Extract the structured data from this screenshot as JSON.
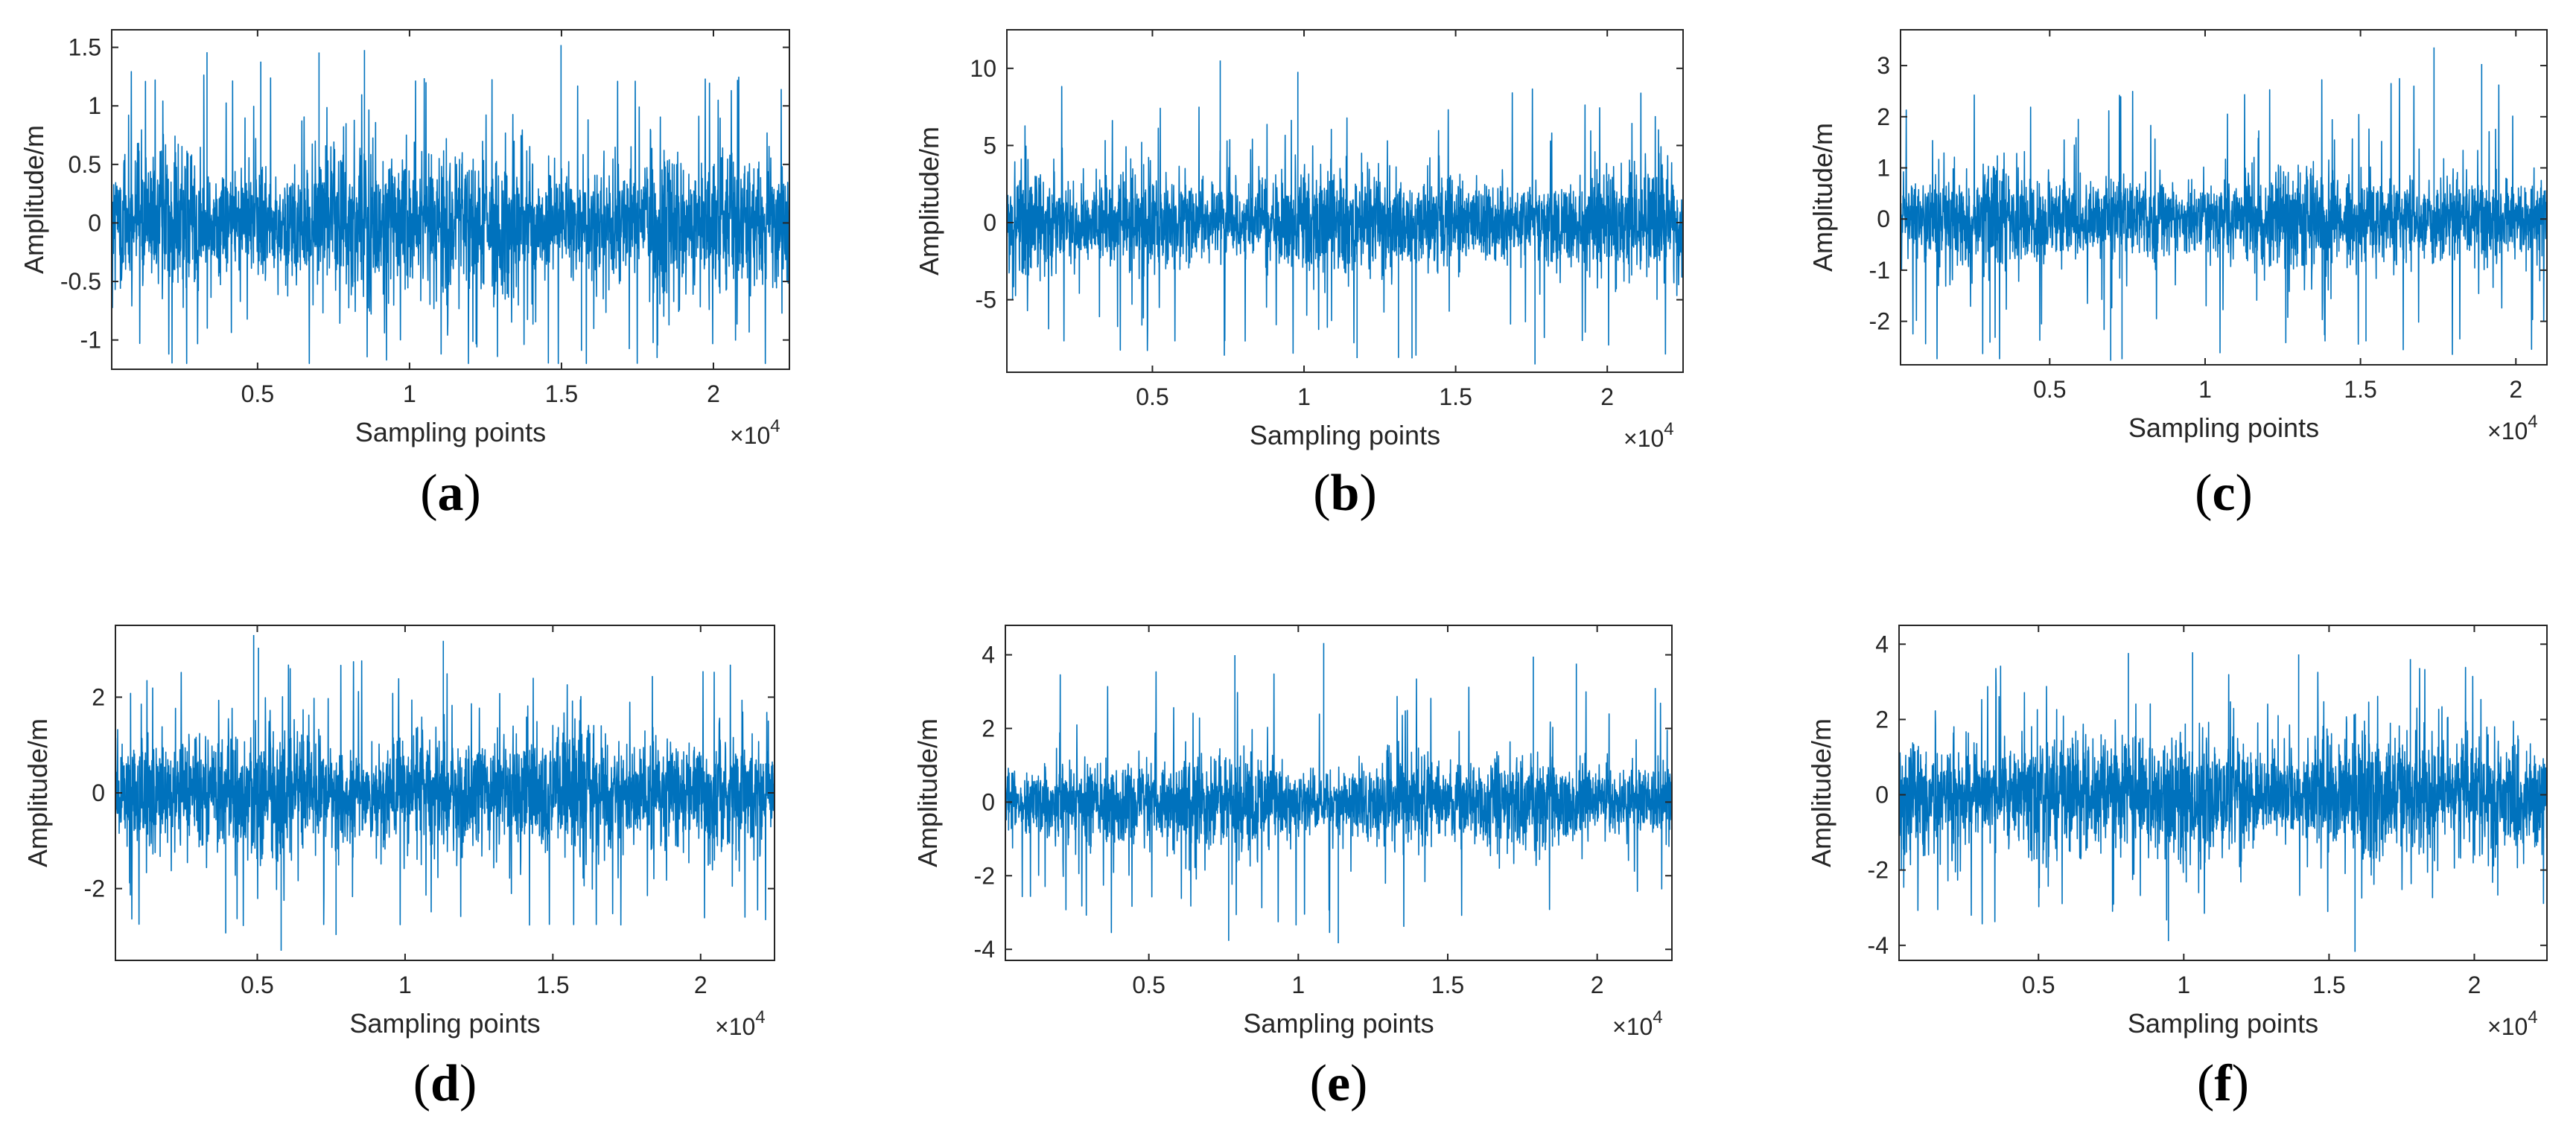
{
  "colors": {
    "signal": "#0072BD",
    "axis": "#262626",
    "background": "#ffffff"
  },
  "chart_data": [
    {
      "type": "line",
      "panel": "(a)",
      "panel_letter": "a",
      "title": "",
      "xlabel": "Sampling points",
      "ylabel": "Amplitude/m",
      "x_multiplier": "×10",
      "x_multiplier_exp": "4",
      "xlim": [
        0.02,
        2.25
      ],
      "ylim": [
        -1.25,
        1.65
      ],
      "xticks": [
        0.5,
        1,
        1.5,
        2
      ],
      "xtick_labels": [
        "0.5",
        "1",
        "1.5",
        "2"
      ],
      "yticks": [
        -1,
        -0.5,
        0,
        0.5,
        1,
        1.5
      ],
      "ytick_labels": [
        "-1",
        "-0.5",
        "0",
        "0.5",
        "1",
        "1.5"
      ],
      "signal": {
        "n_points": 22528,
        "core_amplitude": 0.5,
        "peak_max": 1.58,
        "peak_min": -1.2,
        "x_end": 2.25
      }
    },
    {
      "type": "line",
      "panel": "(b)",
      "panel_letter": "b",
      "title": "",
      "xlabel": "Sampling points",
      "ylabel": "Amplitude/m",
      "x_multiplier": "×10",
      "x_multiplier_exp": "4",
      "xlim": [
        0.02,
        2.25
      ],
      "ylim": [
        -9.7,
        12.5
      ],
      "xticks": [
        0.5,
        1,
        1.5,
        2
      ],
      "xtick_labels": [
        "0.5",
        "1",
        "1.5",
        "2"
      ],
      "yticks": [
        -5,
        0,
        5,
        10
      ],
      "ytick_labels": [
        "-5",
        "0",
        "5",
        "10"
      ],
      "signal": {
        "n_points": 22528,
        "core_amplitude": 2.6,
        "peak_max": 11,
        "peak_min": -9.3,
        "x_end": 2.25
      }
    },
    {
      "type": "line",
      "panel": "(c)",
      "panel_letter": "c",
      "title": "",
      "xlabel": "Sampling points",
      "ylabel": "Amplitude/m",
      "x_multiplier": "×10",
      "x_multiplier_exp": "4",
      "xlim": [
        0.02,
        2.1
      ],
      "ylim": [
        -2.85,
        3.7
      ],
      "xticks": [
        0.5,
        1,
        1.5,
        2
      ],
      "xtick_labels": [
        "0.5",
        "1",
        "1.5",
        "2"
      ],
      "yticks": [
        -2,
        -1,
        0,
        1,
        2,
        3
      ],
      "ytick_labels": [
        "-2",
        "-1",
        "0",
        "1",
        "2",
        "3"
      ],
      "signal": {
        "n_points": 22528,
        "core_amplitude": 0.75,
        "peak_max": 3.5,
        "peak_min": -2.8,
        "x_end": 2.1
      }
    },
    {
      "type": "line",
      "panel": "(d)",
      "panel_letter": "d",
      "title": "",
      "xlabel": "Sampling points",
      "ylabel": "Amplitude/m",
      "x_multiplier": "×10",
      "x_multiplier_exp": "4",
      "xlim": [
        0.02,
        2.25
      ],
      "ylim": [
        -3.5,
        3.5
      ],
      "xticks": [
        0.5,
        1,
        1.5,
        2
      ],
      "xtick_labels": [
        "0.5",
        "1",
        "1.5",
        "2"
      ],
      "yticks": [
        -2,
        0,
        2
      ],
      "ytick_labels": [
        "-2",
        "0",
        "2"
      ],
      "signal": {
        "n_points": 22528,
        "core_amplitude": 1.1,
        "peak_max": 3.4,
        "peak_min": -3.4,
        "x_end": 2.25
      }
    },
    {
      "type": "line",
      "panel": "(e)",
      "panel_letter": "e",
      "title": "",
      "xlabel": "Sampling points",
      "ylabel": "Amplitude/m",
      "x_multiplier": "×10",
      "x_multiplier_exp": "4",
      "xlim": [
        0.02,
        2.25
      ],
      "ylim": [
        -4.3,
        4.8
      ],
      "xticks": [
        0.5,
        1,
        1.5,
        2
      ],
      "xtick_labels": [
        "0.5",
        "1",
        "1.5",
        "2"
      ],
      "yticks": [
        -4,
        -2,
        0,
        2,
        4
      ],
      "ytick_labels": [
        "-4",
        "-2",
        "0",
        "2",
        "4"
      ],
      "signal": {
        "n_points": 22528,
        "core_amplitude": 1.0,
        "peak_max": 4.4,
        "peak_min": -4.1,
        "x_end": 2.25
      }
    },
    {
      "type": "line",
      "panel": "(f)",
      "panel_letter": "f",
      "title": "",
      "xlabel": "Sampling points",
      "ylabel": "Amplitude/m",
      "x_multiplier": "×10",
      "x_multiplier_exp": "4",
      "xlim": [
        0.02,
        2.25
      ],
      "ylim": [
        -4.4,
        4.5
      ],
      "xticks": [
        0.5,
        1,
        1.5,
        2
      ],
      "xtick_labels": [
        "0.5",
        "1",
        "1.5",
        "2"
      ],
      "yticks": [
        -4,
        -2,
        0,
        2,
        4
      ],
      "ytick_labels": [
        "-4",
        "-2",
        "0",
        "2",
        "4"
      ],
      "signal": {
        "n_points": 22528,
        "core_amplitude": 1.3,
        "peak_max": 4.0,
        "peak_min": -4.2,
        "x_end": 2.25
      }
    }
  ]
}
